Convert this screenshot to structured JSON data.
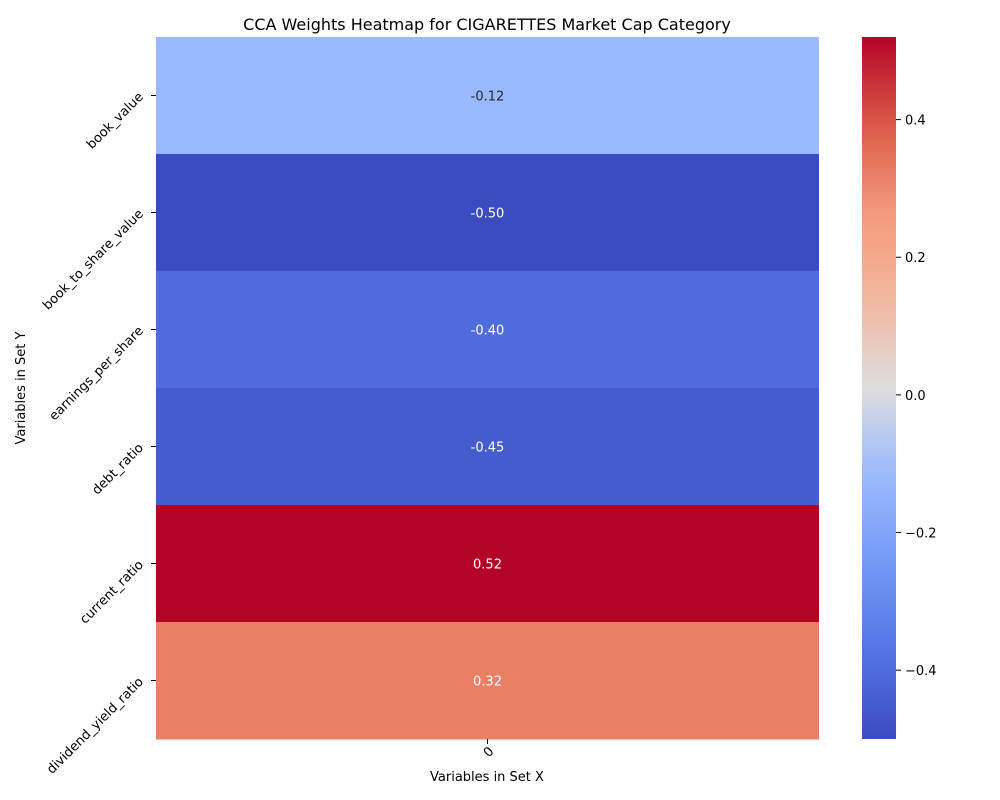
{
  "chart_data": {
    "type": "heatmap",
    "title": "CCA Weights Heatmap for CIGARETTES Market Cap Category",
    "xlabel": "Variables in Set X",
    "ylabel": "Variables in Set Y",
    "x_categories": [
      "0"
    ],
    "y_categories": [
      "book_value",
      "book_to_share_value",
      "earnings_per_share",
      "debt_ratio",
      "current_ratio",
      "dividend_yield_ratio"
    ],
    "values": [
      [
        -0.12
      ],
      [
        -0.5
      ],
      [
        -0.4
      ],
      [
        -0.45
      ],
      [
        0.52
      ],
      [
        0.32
      ]
    ],
    "cell_labels": [
      "-0.12",
      "-0.50",
      "-0.40",
      "-0.45",
      "0.52",
      "0.32"
    ],
    "colormap": "coolwarm",
    "vmin": -0.5,
    "vmax": 0.52,
    "colorbar_ticks": [
      -0.4,
      -0.2,
      0.0,
      0.2,
      0.4
    ],
    "colorbar_tick_labels": [
      "−0.4",
      "−0.2",
      "0.0",
      "0.2",
      "0.4"
    ]
  }
}
